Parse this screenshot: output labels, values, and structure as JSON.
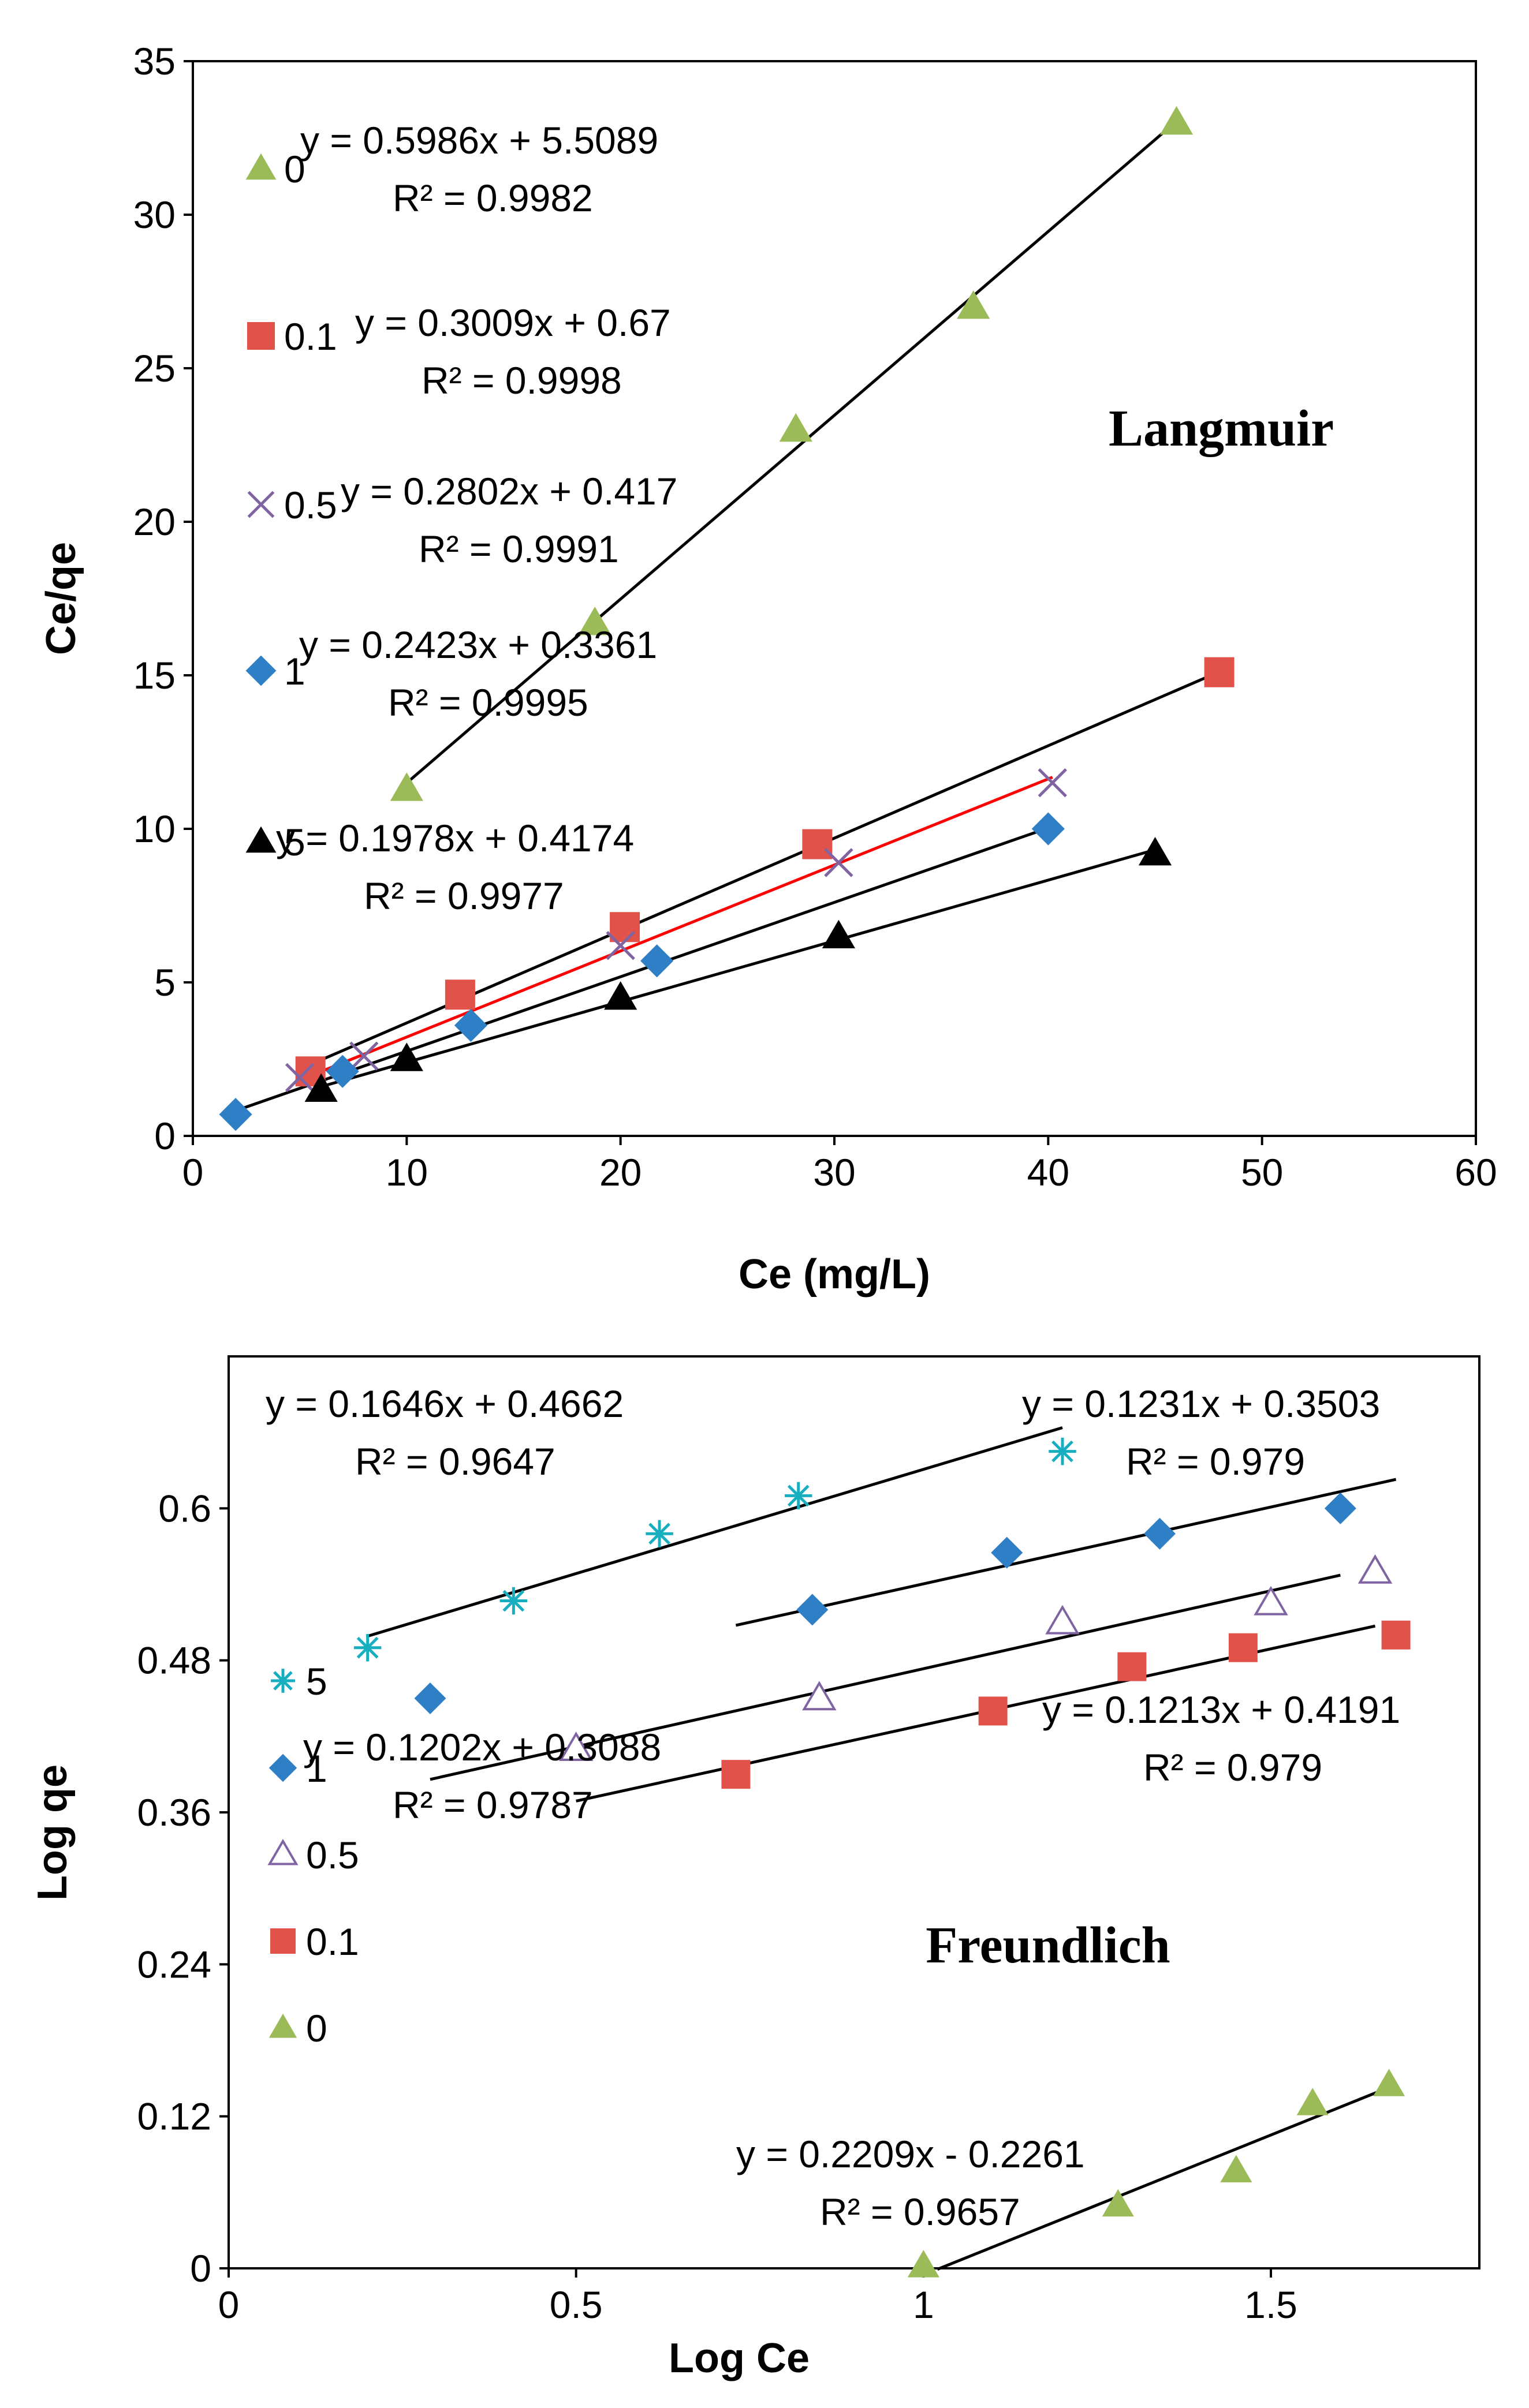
{
  "chart_data": [
    {
      "type": "scatter",
      "title": "Langmuir",
      "xlabel": "Ce (mg/L)",
      "ylabel": "Ce/qe",
      "xlim": [
        0,
        60
      ],
      "ylim": [
        0,
        35
      ],
      "xticks": [
        "0",
        "10",
        "20",
        "30",
        "40",
        "50",
        "60"
      ],
      "yticks": [
        "0",
        "5",
        "10",
        "15",
        "20",
        "25",
        "30",
        "35"
      ],
      "series": [
        {
          "name": "0",
          "marker": "triangle",
          "color": "#9BBB59",
          "x": [
            10,
            18.8,
            28.2,
            36.5,
            46
          ],
          "y": [
            11.3,
            16.7,
            23,
            27,
            33
          ],
          "fit": {
            "slope": 0.5986,
            "intercept": 5.5089,
            "x_range": [
              10,
              46
            ],
            "color": "#000000"
          },
          "equation": "y = 0.5986x + 5.5089",
          "r2": "R² = 0.9982"
        },
        {
          "name": "0.1",
          "marker": "square",
          "color": "#E0524A",
          "x": [
            5.5,
            12.5,
            20.2,
            29.2,
            48
          ],
          "y": [
            2.1,
            4.6,
            6.8,
            9.5,
            15.1
          ],
          "fit": {
            "slope": 0.3009,
            "intercept": 0.67,
            "x_range": [
              5.5,
              48
            ],
            "color": "#000000"
          },
          "equation": "y = 0.3009x + 0.67",
          "r2": "R² = 0.9998"
        },
        {
          "name": "0.5",
          "marker": "x",
          "color": "#8064A2",
          "x": [
            5,
            8,
            20,
            30.2,
            40.2
          ],
          "y": [
            1.9,
            2.6,
            6.2,
            8.9,
            11.5
          ],
          "fit": {
            "slope": 0.2802,
            "intercept": 0.417,
            "x_range": [
              5,
              40.2
            ],
            "color": "#FF0000"
          },
          "equation": "y = 0.2802x + 0.417",
          "r2": "R² = 0.9991"
        },
        {
          "name": "1",
          "marker": "diamond",
          "color": "#2E7FC6",
          "x": [
            2,
            7,
            13,
            21.7,
            40
          ],
          "y": [
            0.7,
            2.1,
            3.6,
            5.7,
            10
          ],
          "fit": {
            "slope": 0.2423,
            "intercept": 0.3361,
            "x_range": [
              2,
              40
            ],
            "color": "#000000"
          },
          "equation": "y = 0.2423x + 0.3361",
          "r2": "R² = 0.9995"
        },
        {
          "name": "5",
          "marker": "triangle",
          "color": "#000000",
          "x": [
            6,
            10,
            20,
            30.2,
            45
          ],
          "y": [
            1.5,
            2.5,
            4.5,
            6.5,
            9.2
          ],
          "fit": {
            "slope": 0.1978,
            "intercept": 0.4174,
            "x_range": [
              6,
              45
            ],
            "color": "#000000"
          },
          "equation": "y = 0.1978x + 0.4174",
          "r2": "R² = 0.9977"
        }
      ]
    },
    {
      "type": "scatter",
      "title": "Freundlich",
      "xlabel": "Log Ce",
      "ylabel": "Log qe",
      "xlim": [
        0,
        1.8
      ],
      "ylim": [
        0,
        0.72
      ],
      "xticks": [
        "0",
        "0.5",
        "1",
        "1.5"
      ],
      "yticks": [
        "0",
        "0.12",
        "0.24",
        "0.36",
        "0.48",
        "0.6"
      ],
      "series": [
        {
          "name": "5",
          "marker": "asterisk",
          "color": "#17AEC0",
          "x": [
            0.2,
            0.41,
            0.62,
            0.82,
            1.2
          ],
          "y": [
            0.49,
            0.527,
            0.58,
            0.61,
            0.645
          ],
          "fit": {
            "slope": 0.1646,
            "intercept": 0.4662,
            "x_range": [
              0.2,
              1.2
            ],
            "color": "#000000"
          },
          "equation": "y = 0.1646x + 0.4662",
          "r2": "R² = 0.9647"
        },
        {
          "name": "1",
          "marker": "diamond",
          "color": "#2E7FC6",
          "x": [
            0.29,
            0.84,
            1.12,
            1.34,
            1.6
          ],
          "y": [
            0.45,
            0.52,
            0.565,
            0.58,
            0.6
          ],
          "fit": {
            "slope": 0.1231,
            "intercept": 0.3503,
            "x_range": [
              0.29,
              1.6
            ],
            "color": "#000000"
          },
          "equation": "y = 0.1231x + 0.3503",
          "r2": "R² = 0.979"
        },
        {
          "name": "0.5",
          "marker": "triangle-open",
          "color": "#8064A2",
          "x": [
            0.5,
            0.85,
            1.2,
            1.5,
            1.65
          ],
          "y": [
            0.41,
            0.45,
            0.51,
            0.525,
            0.55
          ],
          "fit": {
            "slope": 0.1202,
            "intercept": 0.3088,
            "x_range": [
              0.5,
              1.65
            ],
            "color": "#000000"
          },
          "equation": "y = 0.1202x + 0.3088",
          "r2": "R² = 0.9787"
        },
        {
          "name": "0.1",
          "marker": "square",
          "color": "#E0524A",
          "x": [
            0.73,
            1.1,
            1.3,
            1.46,
            1.68
          ],
          "y": [
            0.39,
            0.44,
            0.475,
            0.49,
            0.5
          ],
          "fit": {
            "slope": 0.1213,
            "intercept": 0.4191,
            "x_range": [
              0.73,
              1.68
            ],
            "color": "#000000"
          },
          "equation": "y = 0.1213x + 0.4191",
          "r2": "R² = 0.979"
        },
        {
          "name": "0",
          "marker": "triangle",
          "color": "#9BBB59",
          "x": [
            1,
            1.28,
            1.45,
            1.56,
            1.67
          ],
          "y": [
            0.002,
            0.05,
            0.077,
            0.13,
            0.145
          ],
          "fit": {
            "slope": 0.2209,
            "intercept": -0.2261,
            "x_range": [
              1.02,
              1.67
            ],
            "color": "#000000"
          },
          "equation": "y = 0.2209x - 0.2261",
          "r2": "R² = 0.9657"
        }
      ]
    }
  ],
  "colors": {
    "axis": "#000000",
    "frame": "#000000"
  }
}
